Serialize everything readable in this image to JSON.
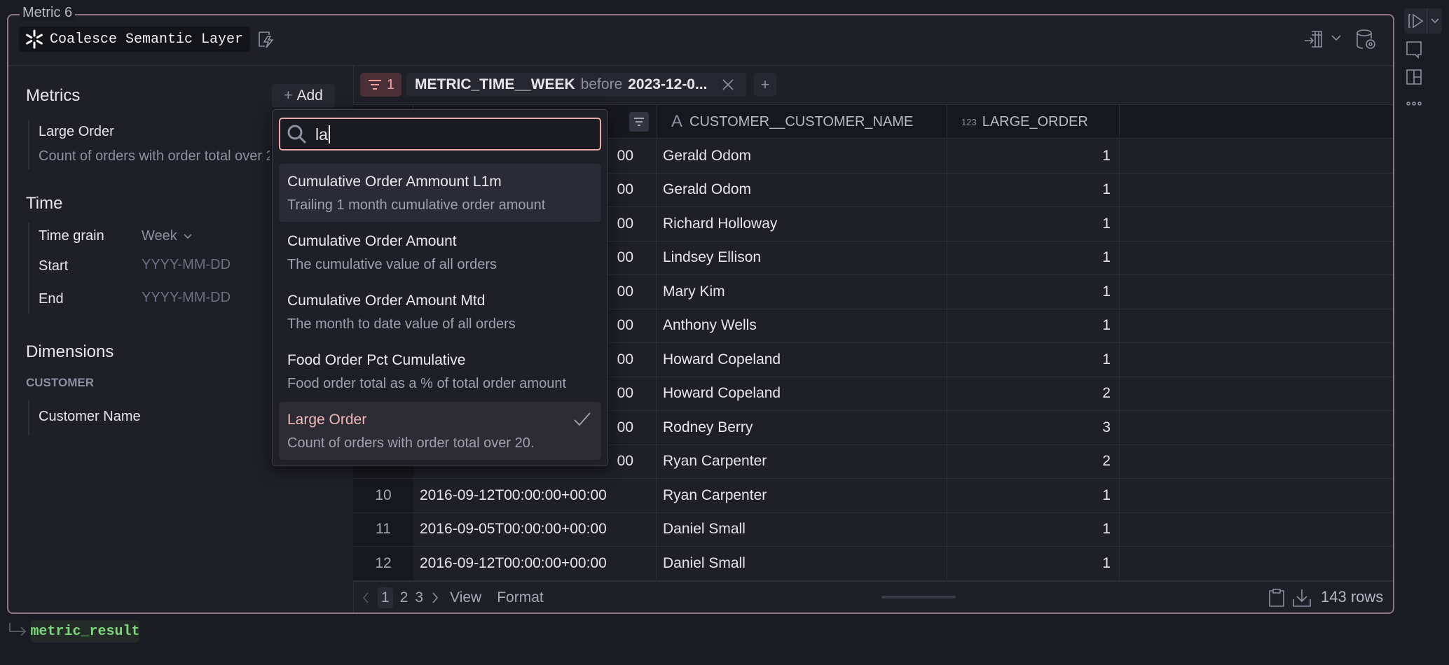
{
  "window": {
    "title": "Metric 6",
    "connection": "Coalesce Semantic Layer"
  },
  "left": {
    "metrics_title": "Metrics",
    "add_label": "Add",
    "metrics": [
      {
        "name": "Large Order",
        "description": "Count of orders with order total over 20."
      }
    ],
    "time_title": "Time",
    "time_grain_label": "Time grain",
    "time_grain_value": "Week",
    "start_label": "Start",
    "start_placeholder": "YYYY-MM-DD",
    "end_label": "End",
    "end_placeholder": "YYYY-MM-DD",
    "dimensions_title": "Dimensions",
    "dimension_group": "CUSTOMER",
    "dimensions": [
      "Customer Name"
    ]
  },
  "filters": {
    "count": "1",
    "field": "METRIC_TIME__WEEK",
    "op": "before",
    "value": "2023-12-0..."
  },
  "table": {
    "columns": [
      {
        "type": "A",
        "name": "CUSTOMER__CUSTOMER_NAME"
      },
      {
        "type": "123",
        "name": "LARGE_ORDER"
      }
    ],
    "rows": [
      {
        "i": "",
        "date": "00",
        "name": "Gerald Odom",
        "v": "1"
      },
      {
        "i": "",
        "date": "00",
        "name": "Gerald Odom",
        "v": "1"
      },
      {
        "i": "",
        "date": "00",
        "name": "Richard Holloway",
        "v": "1"
      },
      {
        "i": "",
        "date": "00",
        "name": "Lindsey Ellison",
        "v": "1"
      },
      {
        "i": "",
        "date": "00",
        "name": "Mary Kim",
        "v": "1"
      },
      {
        "i": "",
        "date": "00",
        "name": "Anthony Wells",
        "v": "1"
      },
      {
        "i": "",
        "date": "00",
        "name": "Howard Copeland",
        "v": "1"
      },
      {
        "i": "",
        "date": "00",
        "name": "Howard Copeland",
        "v": "2"
      },
      {
        "i": "",
        "date": "00",
        "name": "Rodney Berry",
        "v": "3"
      },
      {
        "i": "",
        "date": "00",
        "name": "Ryan Carpenter",
        "v": "2"
      },
      {
        "i": "10",
        "date": "2016-09-12T00:00:00+00:00",
        "name": "Ryan Carpenter",
        "v": "1"
      },
      {
        "i": "11",
        "date": "2016-09-05T00:00:00+00:00",
        "name": "Daniel Small",
        "v": "1"
      },
      {
        "i": "12",
        "date": "2016-09-12T00:00:00+00:00",
        "name": "Daniel Small",
        "v": "1"
      }
    ]
  },
  "footer": {
    "pages": [
      "1",
      "2",
      "3"
    ],
    "current_page": "1",
    "view": "View",
    "format": "Format",
    "row_count": "143 rows"
  },
  "dropdown": {
    "search_value": "la",
    "items": [
      {
        "title": "Cumulative Order Ammount L1m",
        "description": "Trailing 1 month cumulative order amount",
        "state": "hover"
      },
      {
        "title": "Cumulative Order Amount",
        "description": "The cumulative value of all orders"
      },
      {
        "title": "Cumulative Order Amount Mtd",
        "description": "The month to date value of all orders"
      },
      {
        "title": "Food Order Pct Cumulative",
        "description": "Food order total as a % of total order amount"
      },
      {
        "title": "Large Order",
        "description": "Count of orders with order total over 20.",
        "state": "selected"
      }
    ]
  },
  "output": {
    "name": "metric_result"
  },
  "colors": {
    "accent": "#f0b8b8",
    "frame": "#8e7a80",
    "output_green": "#7dd87d"
  }
}
